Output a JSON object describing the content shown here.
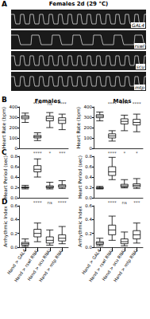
{
  "figure": {
    "panels": [
      "A",
      "B",
      "C",
      "D"
    ],
    "traces": {
      "title": "Females 2d (29 °C)",
      "labels": [
        "GAL4",
        "rswl",
        "scu",
        "mtp"
      ]
    }
  },
  "chart_data": [
    {
      "type": "boxplot",
      "title": "Females",
      "y_label": "Heart Rate (bpm)",
      "color": "#000000",
      "grid": false,
      "tick_labels": "y",
      "categories": [
        "Hand > GAL4",
        "Hand > rswl RNAi",
        "Hand > scu RNAi",
        "Hand > mtp RNAi"
      ],
      "values": [
        [
          250,
          285,
          300,
          315,
          340
        ],
        [
          75,
          100,
          112,
          125,
          150
        ],
        [
          200,
          265,
          290,
          310,
          345
        ],
        [
          180,
          240,
          270,
          295,
          330
        ]
      ],
      "significance": [
        null,
        "****",
        "ns",
        "****"
      ],
      "ylim": [
        0,
        400
      ],
      "yticks": [
        0,
        100,
        200,
        300,
        400
      ]
    },
    {
      "type": "boxplot",
      "title": "Males",
      "y_label": "Heart Rate (bpm)",
      "color": "#000000",
      "grid": false,
      "tick_labels": "y",
      "categories": [
        "Hand > GAL4",
        "Hand > rswl RNAi",
        "Hand > scu RNAi",
        "Hand > mtp RNAi"
      ],
      "values": [
        [
          265,
          295,
          310,
          325,
          350
        ],
        [
          70,
          100,
          120,
          140,
          170
        ],
        [
          170,
          235,
          260,
          285,
          320
        ],
        [
          160,
          225,
          250,
          280,
          330
        ]
      ],
      "significance": [
        null,
        "****",
        "****",
        "****"
      ],
      "ylim": [
        0,
        400
      ],
      "yticks": [
        0,
        100,
        200,
        300,
        400
      ]
    },
    {
      "type": "boxplot",
      "y_label": "Heart Period (sec)",
      "color": "#000000",
      "grid": false,
      "tick_labels": "y",
      "categories": [
        "Hand > GAL4",
        "Hand > rswl RNAi",
        "Hand > scu RNAi",
        "Hand > mtp RNAi"
      ],
      "values": [
        [
          0.17,
          0.19,
          0.2,
          0.21,
          0.24
        ],
        [
          0.4,
          0.5,
          0.55,
          0.62,
          0.75
        ],
        [
          0.17,
          0.19,
          0.21,
          0.23,
          0.3
        ],
        [
          0.18,
          0.2,
          0.23,
          0.25,
          0.33
        ]
      ],
      "significance": [
        null,
        "****",
        "*",
        "***"
      ],
      "ylim": [
        0,
        0.8
      ],
      "yticks": [
        {
          "value": 0,
          "label": "0.0"
        },
        0.2,
        0.4,
        0.6,
        0.8
      ]
    },
    {
      "type": "boxplot",
      "y_label": "Heart Period (sec)",
      "color": "#000000",
      "grid": false,
      "tick_labels": "y",
      "categories": [
        "Hand > GAL4",
        "Hand > rswl RNAi",
        "Hand > scu RNAi",
        "Hand > mtp RNAi"
      ],
      "values": [
        [
          0.17,
          0.18,
          0.19,
          0.2,
          0.22
        ],
        [
          0.35,
          0.43,
          0.5,
          0.6,
          0.78
        ],
        [
          0.19,
          0.21,
          0.23,
          0.26,
          0.35
        ],
        [
          0.18,
          0.21,
          0.24,
          0.27,
          0.37
        ]
      ],
      "significance": [
        null,
        "****",
        "*",
        "*"
      ],
      "ylim": [
        0,
        0.8
      ],
      "yticks": [
        {
          "value": 0,
          "label": "0.0"
        },
        0.2,
        0.4,
        0.6,
        0.8
      ]
    },
    {
      "type": "boxplot",
      "y_label": "Arrhythmic Index",
      "color": "#000000",
      "grid": false,
      "categories": [
        "Hand > GAL4",
        "Hand > rswl RNAi",
        "Hand > scu RNAi",
        "Hand > mtp RNAi"
      ],
      "values": [
        [
          0.01,
          0.03,
          0.05,
          0.07,
          0.12
        ],
        [
          0.08,
          0.15,
          0.2,
          0.26,
          0.35
        ],
        [
          0.03,
          0.06,
          0.1,
          0.15,
          0.25
        ],
        [
          0.05,
          0.09,
          0.13,
          0.18,
          0.3
        ]
      ],
      "significance": [
        null,
        "****",
        "ns",
        "****"
      ],
      "ylim": [
        0,
        0.6
      ],
      "yticks": [
        {
          "value": 0,
          "label": "0.0"
        },
        0.2,
        0.4,
        0.6
      ]
    },
    {
      "type": "boxplot",
      "y_label": "Arrhythmic Index",
      "color": "#000000",
      "grid": false,
      "categories": [
        "Hand > GAL4",
        "Hand > rswl RNAi",
        "Hand > scu RNAi",
        "Hand > mtp RNAi"
      ],
      "values": [
        [
          0.02,
          0.04,
          0.06,
          0.08,
          0.13
        ],
        [
          0.1,
          0.18,
          0.25,
          0.32,
          0.45
        ],
        [
          0.02,
          0.05,
          0.08,
          0.12,
          0.22
        ],
        [
          0.06,
          0.12,
          0.18,
          0.24,
          0.35
        ]
      ],
      "significance": [
        null,
        "****",
        "ns",
        "***"
      ],
      "ylim": [
        0,
        0.6
      ],
      "yticks": [
        {
          "value": 0,
          "label": "0.0"
        },
        0.2,
        0.4,
        0.6
      ]
    }
  ]
}
